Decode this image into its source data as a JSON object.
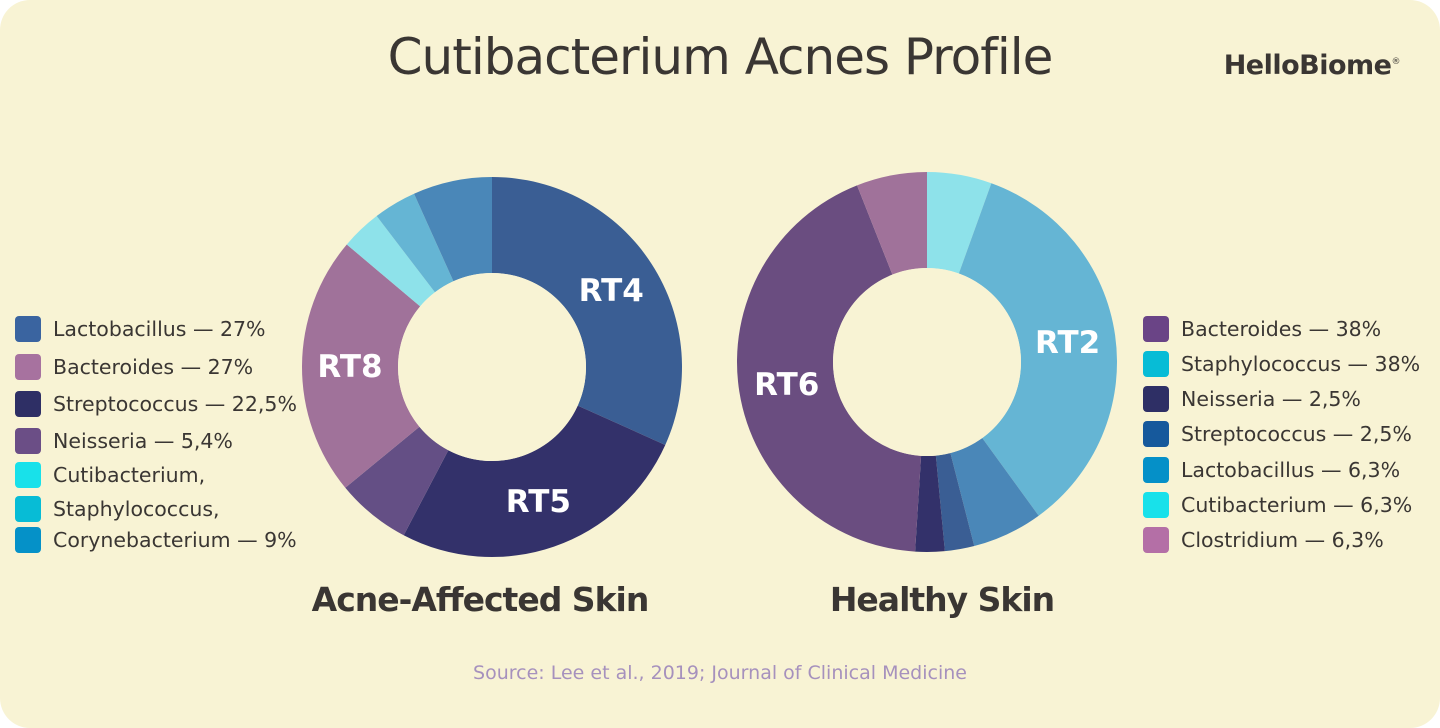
{
  "header": {
    "title": "Cutibacterium Acnes Profile",
    "brand": "HelloBiome",
    "brand_mark": "®"
  },
  "source": "Source: Lee et al., 2019; Journal of Clinical Medicine",
  "chart_data": [
    {
      "type": "pie",
      "title": "Acne-Affected Skin",
      "hole": "donut",
      "slices": [
        {
          "label": "RT4",
          "value": 33,
          "color": "#3a5e94",
          "show_label": true
        },
        {
          "label": "RT5",
          "value": 27,
          "color": "#33316a",
          "show_label": true
        },
        {
          "label": "",
          "value": 6.6,
          "color": "#644f85",
          "show_label": false
        },
        {
          "label": "RT8",
          "value": 23,
          "color": "#a0729a",
          "show_label": true
        },
        {
          "label": "",
          "value": 3.6,
          "color": "#8ee2ea",
          "show_label": false
        },
        {
          "label": "",
          "value": 3.8,
          "color": "#65b5d4",
          "show_label": false
        },
        {
          "label": "",
          "value": 7,
          "color": "#4a87b8",
          "show_label": false
        }
      ],
      "legend": {
        "position": "left",
        "items": [
          {
            "text": "Lactobacillus — 27%",
            "color": "#3a64a0"
          },
          {
            "text": "Bacteroides — 27%",
            "color": "#a7729f"
          },
          {
            "text": "Streptococcus — 22,5%",
            "color": "#2e2f65"
          },
          {
            "text": "Neisseria — 5,4%",
            "color": "#6b4e86"
          },
          {
            "text": "Cutibacterium,",
            "color": "#18e1ea"
          },
          {
            "text": "Staphylococcus,",
            "color": "#07bcd6"
          },
          {
            "text": "Corynebacterium — 9%",
            "color": "#0591c8"
          }
        ]
      }
    },
    {
      "type": "pie",
      "title": "Healthy Skin",
      "hole": "donut",
      "slices": [
        {
          "label": "",
          "value": 5.5,
          "color": "#8ee2ea",
          "show_label": false
        },
        {
          "label": "RT2",
          "value": 34.5,
          "color": "#65b5d4",
          "show_label": true
        },
        {
          "label": "",
          "value": 6,
          "color": "#4a87b8",
          "show_label": false
        },
        {
          "label": "",
          "value": 2.5,
          "color": "#3a5e94",
          "show_label": false
        },
        {
          "label": "",
          "value": 2.5,
          "color": "#33316a",
          "show_label": false
        },
        {
          "label": "RT6",
          "value": 43,
          "color": "#6a4d80",
          "show_label": true
        },
        {
          "label": "",
          "value": 6,
          "color": "#a0729a",
          "show_label": false
        }
      ],
      "legend": {
        "position": "right",
        "items": [
          {
            "text": "Bacteroides — 38%",
            "color": "#6a4486"
          },
          {
            "text": "Staphylococcus — 38%",
            "color": "#07bcd6"
          },
          {
            "text": "Neisseria — 2,5%",
            "color": "#2e2f65"
          },
          {
            "text": "Streptococcus — 2,5%",
            "color": "#16599c"
          },
          {
            "text": "Lactobacillus — 6,3%",
            "color": "#0590c8"
          },
          {
            "text": "Cutibacterium — 6,3%",
            "color": "#18e1ea"
          },
          {
            "text": "Clostridium — 6,3%",
            "color": "#b46fa6"
          }
        ]
      }
    }
  ]
}
